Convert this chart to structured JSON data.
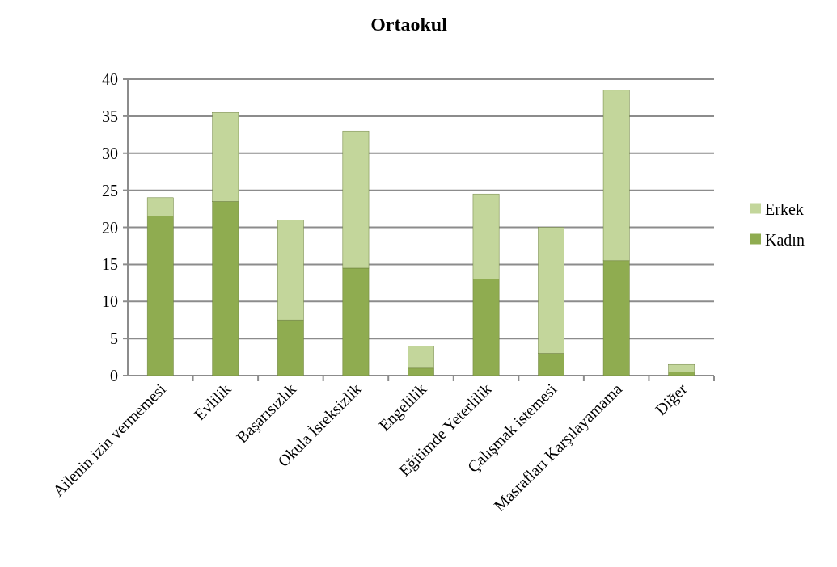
{
  "chart_data": {
    "type": "bar",
    "title": "Ortaokul",
    "stacked": true,
    "categories": [
      "Ailenin izin vermemesi",
      "Evlilik",
      "Başarısızlık",
      "Okula İsteksizlik",
      "Engelilik",
      "Eğitimde Yeterlilik",
      "Çalışmak istemesi",
      "Masrafları Karşılayamama",
      "Diğer"
    ],
    "series": [
      {
        "name": "Kadın",
        "color": "#8fac50",
        "values": [
          21.5,
          23.5,
          7.5,
          14.5,
          1,
          13,
          3,
          15.5,
          0.5
        ]
      },
      {
        "name": "Erkek",
        "color": "#c3d69b",
        "values": [
          2.5,
          12,
          13.5,
          18.5,
          3,
          11.5,
          17,
          23,
          1
        ]
      }
    ],
    "ylim": [
      0,
      40
    ],
    "yticks": [
      0,
      5,
      10,
      15,
      20,
      25,
      30,
      35,
      40
    ],
    "grid": "y",
    "legend": "right"
  }
}
